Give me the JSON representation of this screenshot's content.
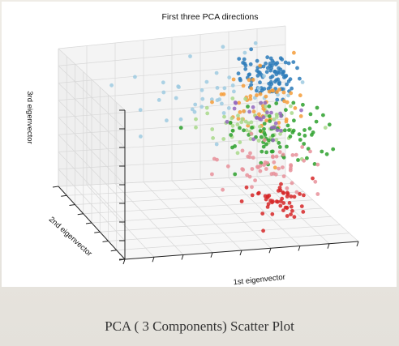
{
  "caption": "PCA ( 3 Components) Scatter Plot",
  "colors": {
    "blue": "#2b7bba",
    "light_blue": "#9ecae1",
    "orange": "#f59c38",
    "light_green": "#a8d88a",
    "green": "#2ca02c",
    "purple": "#9467bd",
    "pink": "#e8909a",
    "red": "#d62728",
    "grid": "#d8d8d8",
    "pane": "#f4f4f4"
  },
  "chart_data": {
    "type": "scatter",
    "projection": "3d",
    "title": "First three PCA directions",
    "xlabel": "1st eigenvector",
    "ylabel": "2nd eigenvector",
    "zlabel": "3rd eigenvector",
    "tick_labels_shown": false,
    "grid": true,
    "legend": "none",
    "axis_range": {
      "x": [
        -1,
        1
      ],
      "y": [
        -1,
        1
      ],
      "z": [
        -1,
        1
      ]
    },
    "series": [
      {
        "color_key": "blue",
        "count": 95,
        "center": [
          0.7,
          0.55,
          0.55
        ],
        "spread": [
          0.13,
          0.15,
          0.13
        ]
      },
      {
        "color_key": "light_blue",
        "count": 45,
        "center": [
          0.2,
          0.3,
          0.5
        ],
        "spread": [
          0.35,
          0.3,
          0.22
        ]
      },
      {
        "color_key": "orange",
        "count": 55,
        "center": [
          0.6,
          0.2,
          0.3
        ],
        "spread": [
          0.18,
          0.25,
          0.2
        ]
      },
      {
        "color_key": "light_green",
        "count": 60,
        "center": [
          0.35,
          0.0,
          0.15
        ],
        "spread": [
          0.22,
          0.25,
          0.15
        ]
      },
      {
        "color_key": "green",
        "count": 75,
        "center": [
          0.55,
          -0.1,
          0.05
        ],
        "spread": [
          0.25,
          0.3,
          0.14
        ]
      },
      {
        "color_key": "purple",
        "count": 25,
        "center": [
          0.55,
          0.3,
          0.15
        ],
        "spread": [
          0.12,
          0.15,
          0.1
        ]
      },
      {
        "color_key": "pink",
        "count": 55,
        "center": [
          0.4,
          -0.35,
          -0.3
        ],
        "spread": [
          0.22,
          0.2,
          0.15
        ]
      },
      {
        "color_key": "red",
        "count": 50,
        "center": [
          0.45,
          -0.55,
          -0.6
        ],
        "spread": [
          0.17,
          0.14,
          0.13
        ]
      }
    ]
  }
}
